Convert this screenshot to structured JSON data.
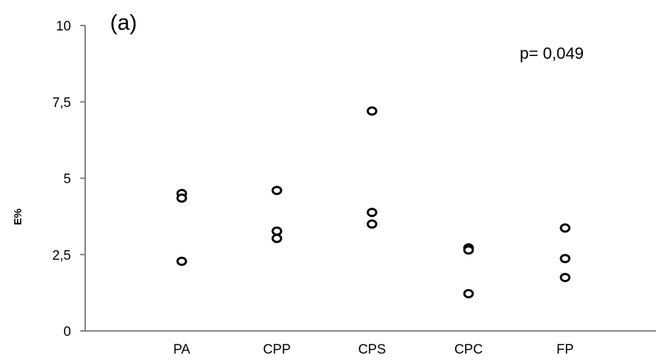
{
  "chart_data": {
    "type": "scatter",
    "panel_label": "(a)",
    "annotation": "p= 0,049",
    "ylabel": "E%",
    "xlabel": "",
    "categories": [
      "PA",
      "CPP",
      "CPS",
      "CPC",
      "FP"
    ],
    "ylim": [
      0,
      10
    ],
    "yticks": [
      0,
      2.5,
      5,
      7.5,
      10
    ],
    "ytick_labels": [
      "0",
      "2,5",
      "5",
      "7,5",
      "10"
    ],
    "grid": false,
    "legend": "none",
    "marker": "open-circle",
    "colors": {
      "marker": "#000000",
      "axis": "#808080",
      "text": "#000000"
    },
    "points": [
      {
        "category": "PA",
        "y": 4.5
      },
      {
        "category": "PA",
        "y": 4.35
      },
      {
        "category": "PA",
        "y": 2.28
      },
      {
        "category": "CPP",
        "y": 4.6
      },
      {
        "category": "CPP",
        "y": 3.27
      },
      {
        "category": "CPP",
        "y": 3.03
      },
      {
        "category": "CPS",
        "y": 7.2
      },
      {
        "category": "CPS",
        "y": 3.88
      },
      {
        "category": "CPS",
        "y": 3.5
      },
      {
        "category": "CPC",
        "y": 2.72
      },
      {
        "category": "CPC",
        "y": 2.65
      },
      {
        "category": "CPC",
        "y": 1.22
      },
      {
        "category": "FP",
        "y": 3.37
      },
      {
        "category": "FP",
        "y": 2.37
      },
      {
        "category": "FP",
        "y": 1.75
      }
    ]
  }
}
